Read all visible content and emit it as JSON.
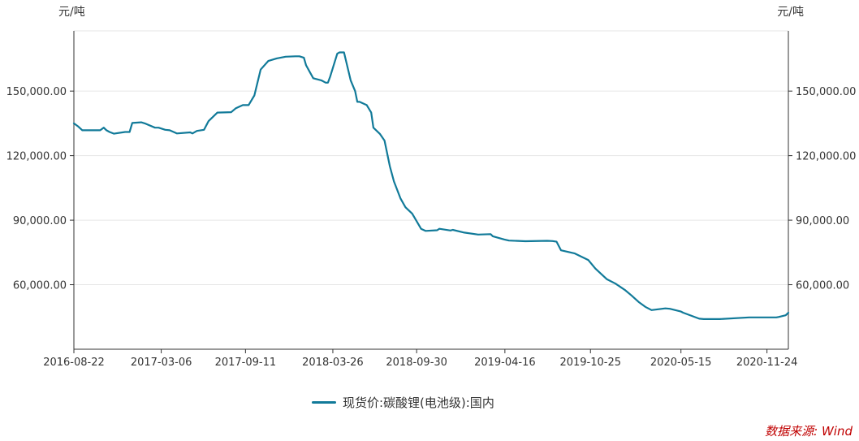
{
  "source_label": "数据来源: Wind",
  "colors": {
    "series": "#117a99",
    "grid": "#e6e6e6",
    "axis": "#333333",
    "source": "#c00000"
  },
  "chart_data": {
    "type": "line",
    "title": "",
    "y_unit_left": "元/吨",
    "y_unit_right": "元/吨",
    "ylim": [
      30000,
      178000
    ],
    "yticks": [
      60000,
      90000,
      120000,
      150000
    ],
    "ytick_labels": [
      "60,000.00",
      "90,000.00",
      "120,000.00",
      "150,000.00"
    ],
    "xlim": [
      "2016-08-22",
      "2021-01-11"
    ],
    "xticks": [
      "2016-08-22",
      "2017-03-06",
      "2017-09-11",
      "2018-03-26",
      "2018-09-30",
      "2019-04-16",
      "2019-10-25",
      "2020-05-15",
      "2020-11-24"
    ],
    "grid": true,
    "legend": "bottom",
    "series": [
      {
        "name": "现货价:碳酸锂(电池级):国内",
        "x": [
          "2016-08-22",
          "2016-09-01",
          "2016-09-10",
          "2016-10-20",
          "2016-10-28",
          "2016-11-03",
          "2016-11-10",
          "2016-11-20",
          "2016-12-15",
          "2016-12-25",
          "2016-12-31",
          "2017-01-20",
          "2017-01-28",
          "2017-02-20",
          "2017-02-28",
          "2017-03-15",
          "2017-03-25",
          "2017-04-10",
          "2017-05-10",
          "2017-05-15",
          "2017-05-25",
          "2017-06-10",
          "2017-06-20",
          "2017-07-10",
          "2017-08-10",
          "2017-08-20",
          "2017-09-05",
          "2017-09-11",
          "2017-09-18",
          "2017-10-01",
          "2017-10-15",
          "2017-11-01",
          "2017-11-20",
          "2017-12-10",
          "2018-01-01",
          "2018-01-10",
          "2018-01-20",
          "2018-01-25",
          "2018-02-10",
          "2018-02-15",
          "2018-02-28",
          "2018-03-10",
          "2018-03-15",
          "2018-03-20",
          "2018-04-05",
          "2018-04-10",
          "2018-04-20",
          "2018-05-05",
          "2018-05-15",
          "2018-05-20",
          "2018-05-25",
          "2018-06-10",
          "2018-06-20",
          "2018-06-25",
          "2018-07-10",
          "2018-07-20",
          "2018-08-01",
          "2018-08-10",
          "2018-08-25",
          "2018-09-05",
          "2018-09-20",
          "2018-10-10",
          "2018-10-20",
          "2018-11-15",
          "2018-11-20",
          "2018-12-15",
          "2018-12-20",
          "2019-01-15",
          "2019-02-15",
          "2019-03-15",
          "2019-03-20",
          "2019-04-15",
          "2019-04-25",
          "2019-06-01",
          "2019-07-20",
          "2019-08-01",
          "2019-08-10",
          "2019-08-20",
          "2019-09-20",
          "2019-10-20",
          "2019-11-05",
          "2019-12-01",
          "2019-12-20",
          "2020-01-10",
          "2020-01-25",
          "2020-02-10",
          "2020-02-25",
          "2020-03-10",
          "2020-04-10",
          "2020-04-20",
          "2020-05-15",
          "2020-05-20",
          "2020-06-25",
          "2020-07-05",
          "2020-08-10",
          "2020-10-15",
          "2020-12-15",
          "2020-12-20",
          "2021-01-05",
          "2021-01-11"
        ],
        "values": [
          135000,
          133500,
          131800,
          131800,
          133000,
          131800,
          131000,
          130200,
          131000,
          131000,
          135200,
          135500,
          135000,
          133000,
          133000,
          132000,
          131800,
          130300,
          130800,
          130300,
          131500,
          132000,
          136000,
          140000,
          140200,
          142000,
          143500,
          143500,
          143500,
          148000,
          160000,
          164000,
          165200,
          166000,
          166200,
          166200,
          165500,
          162000,
          156000,
          155700,
          155000,
          153900,
          153900,
          156800,
          167400,
          168000,
          168000,
          155000,
          150000,
          145000,
          145000,
          143500,
          140000,
          133000,
          130000,
          127000,
          115000,
          108000,
          100000,
          96000,
          93000,
          86000,
          85000,
          85300,
          86000,
          85200,
          85500,
          84200,
          83300,
          83500,
          82500,
          81000,
          80500,
          80200,
          80400,
          80300,
          80000,
          76000,
          74500,
          71500,
          67500,
          62500,
          60500,
          57600,
          55000,
          52000,
          49700,
          48200,
          49000,
          48800,
          47500,
          47000,
          44200,
          44000,
          44000,
          44800,
          44800,
          45000,
          45800,
          47000
        ]
      }
    ]
  }
}
